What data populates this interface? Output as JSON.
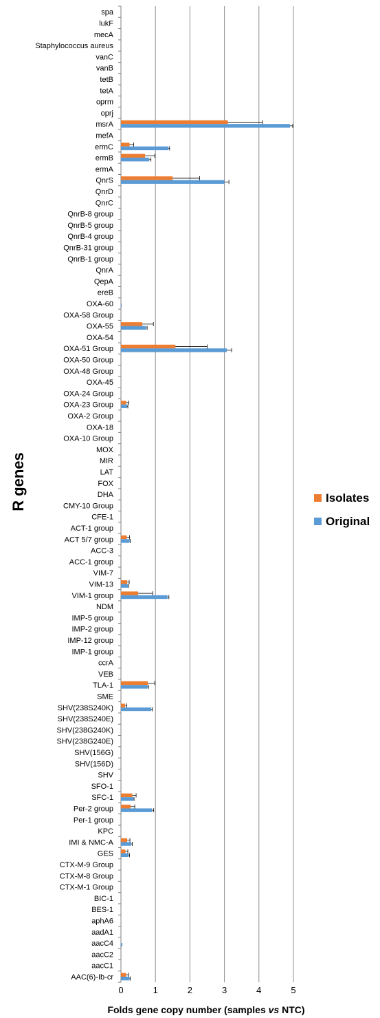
{
  "chart_data": {
    "type": "bar",
    "orientation": "horizontal",
    "ylabel": "R genes",
    "xlabel_parts": [
      "Folds gene copy number (samples ",
      "vs",
      " NTC)"
    ],
    "xlim": [
      0,
      5
    ],
    "xticks": [
      "0",
      "1",
      "2",
      "3",
      "4",
      "5"
    ],
    "grid": true,
    "legend_position": "right",
    "categories": [
      "spa",
      "lukF",
      "mecA",
      "Staphylococcus aureus",
      "vanC",
      "vanB",
      "tetB",
      "tetA",
      "oprm",
      "oprj",
      "msrA",
      "mefA",
      "ermC",
      "ermB",
      "ermA",
      "QnrS",
      "QnrD",
      "QnrC",
      "QnrB-8 group",
      "QnrB-5 group",
      "QnrB-4 group",
      "QnrB-31 group",
      "QnrB-1 group",
      "QnrA",
      "QepA",
      "ereB",
      "OXA-60",
      "OXA-58 Group",
      "OXA-55",
      "OXA-54",
      "OXA-51 Group",
      "OXA-50 Group",
      "OXA-48 Group",
      "OXA-45",
      "OXA-24 Group",
      "OXA-23 Group",
      "OXA-2 Group",
      "OXA-18",
      "OXA-10 Group",
      "MOX",
      "MIR",
      "LAT",
      "FOX",
      "DHA",
      "CMY-10 Group",
      "CFE-1",
      "ACT-1 group",
      "ACT 5/7 group",
      "ACC-3",
      "ACC-1 group",
      "VIM-7",
      "VIM-13",
      "VIM-1 group",
      "NDM",
      "IMP-5 group",
      "IMP-2 group",
      "IMP-12 group",
      "IMP-1 group",
      "ccrA",
      "VEB",
      "TLA-1",
      "SME",
      "SHV(238S240K)",
      "SHV(238S240E)",
      "SHV(238G240K)",
      "SHV(238G240E)",
      "SHV(156G)",
      "SHV(156D)",
      "SHV",
      "SFO-1",
      "SFC-1",
      "Per-2 group",
      "Per-1 group",
      "KPC",
      "IMI & NMC-A",
      "GES",
      "CTX-M-9 Group",
      "CTX-M-8 Group",
      "CTX-M-1 Group",
      "BIC-1",
      "BES-1",
      "aphA6",
      "aadA1",
      "aacC4",
      "aacC2",
      "aacC1",
      "AAC(6)-Ib-cr"
    ],
    "series": [
      {
        "name": "Isolates",
        "color": "#ED7D31",
        "values": [
          0,
          0,
          0,
          0,
          0,
          0,
          0,
          0,
          0,
          0,
          3.1,
          0,
          0.25,
          0.7,
          0,
          1.5,
          0,
          0,
          0,
          0,
          0,
          0,
          0,
          0,
          0,
          0,
          0,
          0,
          0.62,
          0,
          1.58,
          0,
          0,
          0,
          0,
          0.15,
          0,
          0,
          0,
          0,
          0,
          0,
          0,
          0,
          0,
          0,
          0,
          0.17,
          0,
          0,
          0,
          0.18,
          0.5,
          0,
          0,
          0,
          0,
          0,
          0,
          0,
          0.78,
          0,
          0.12,
          0,
          0,
          0,
          0,
          0,
          0,
          0,
          0.33,
          0.28,
          0,
          0,
          0.18,
          0.13,
          0,
          0,
          0,
          0,
          0,
          0,
          0,
          0,
          0,
          0,
          0.15
        ],
        "errors": [
          0,
          0,
          0,
          0,
          0,
          0,
          0,
          0,
          0,
          0,
          1.0,
          0,
          0.12,
          0.28,
          0,
          0.78,
          0,
          0,
          0,
          0,
          0,
          0,
          0,
          0,
          0,
          0,
          0,
          0,
          0.32,
          0,
          0.92,
          0,
          0,
          0,
          0,
          0.08,
          0,
          0,
          0,
          0,
          0,
          0,
          0,
          0,
          0,
          0,
          0,
          0.08,
          0,
          0,
          0,
          0.06,
          0.42,
          0,
          0,
          0,
          0,
          0,
          0,
          0,
          0.2,
          0,
          0.05,
          0,
          0,
          0,
          0,
          0,
          0,
          0,
          0.11,
          0.12,
          0,
          0,
          0.08,
          0.07,
          0,
          0,
          0,
          0,
          0,
          0,
          0,
          0,
          0,
          0,
          0.07
        ]
      },
      {
        "name": "Original",
        "color": "#5B9BD5",
        "values": [
          0,
          0,
          0,
          0,
          0,
          0,
          0,
          0,
          0,
          0,
          4.9,
          0,
          1.38,
          0.82,
          0,
          3.0,
          0,
          0,
          0,
          0,
          0,
          0,
          0,
          0,
          0,
          0,
          0.02,
          0,
          0.73,
          0,
          3.07,
          0,
          0,
          0,
          0,
          0.18,
          0,
          0,
          0,
          0,
          0,
          0,
          0,
          0,
          0,
          0,
          0,
          0.25,
          0,
          0,
          0,
          0.2,
          1.35,
          0,
          0,
          0,
          0,
          0,
          0,
          0,
          0.77,
          0,
          0.88,
          0,
          0,
          0,
          0,
          0,
          0,
          0,
          0.36,
          0.9,
          0,
          0,
          0.3,
          0.22,
          0,
          0,
          0,
          0,
          0,
          0,
          0,
          0.04,
          0,
          0,
          0.25
        ],
        "errors": [
          0,
          0,
          0,
          0,
          0,
          0,
          0,
          0,
          0,
          0,
          0.08,
          0,
          0.03,
          0.05,
          0,
          0.13,
          0,
          0,
          0,
          0,
          0,
          0,
          0,
          0,
          0,
          0,
          0,
          0,
          0.03,
          0,
          0.14,
          0,
          0,
          0,
          0,
          0.02,
          0,
          0,
          0,
          0,
          0,
          0,
          0,
          0,
          0,
          0,
          0,
          0.02,
          0,
          0,
          0,
          0.02,
          0.04,
          0,
          0,
          0,
          0,
          0,
          0,
          0,
          0.03,
          0,
          0.03,
          0,
          0,
          0,
          0,
          0,
          0,
          0,
          0.02,
          0.05,
          0,
          0,
          0.03,
          0.03,
          0,
          0,
          0,
          0,
          0,
          0,
          0,
          0,
          0,
          0,
          0.02
        ]
      }
    ]
  }
}
